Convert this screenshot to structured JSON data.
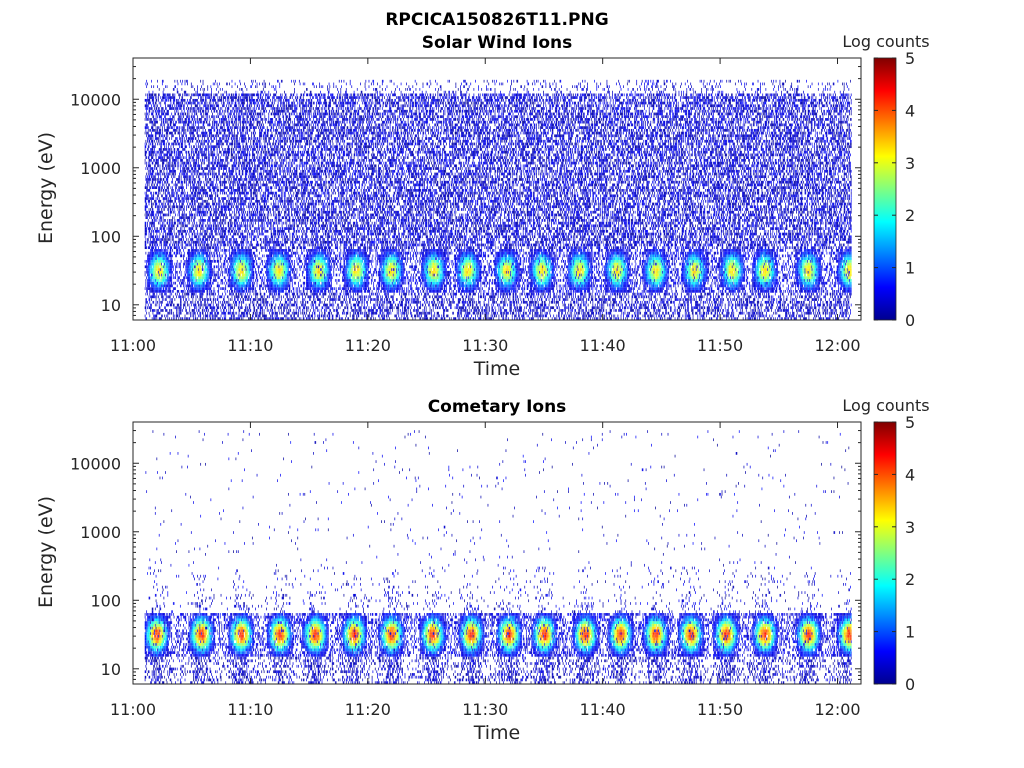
{
  "figure": {
    "title": "RPCICA150826T11.PNG"
  },
  "colorscale": {
    "stops": [
      "#00008f",
      "#0000ff",
      "#0080ff",
      "#00ffff",
      "#80ff80",
      "#ffff00",
      "#ff8000",
      "#ff0000",
      "#800000"
    ]
  },
  "chart_data": [
    {
      "type": "heatmap",
      "title": "Solar Wind Ions",
      "xlabel": "Time",
      "ylabel": "Energy (eV)",
      "y_scale": "log",
      "ylim": [
        6,
        40000
      ],
      "xlim": [
        "11:00",
        "12:02"
      ],
      "x_ticks": [
        "11:00",
        "11:10",
        "11:20",
        "11:30",
        "11:40",
        "11:50",
        "12:00"
      ],
      "y_ticks": [
        "10",
        "100",
        "1000",
        "10000"
      ],
      "colorbar": {
        "label": "Log counts",
        "range": [
          0,
          5
        ],
        "ticks": [
          "0",
          "1",
          "2",
          "3",
          "4",
          "5"
        ]
      },
      "seed": 12345,
      "background_density": 0.55,
      "background_max_energy": 20000,
      "band_energy_range": [
        22,
        45
      ],
      "peak_log_counts": 3.3,
      "bursts_minutes": [
        2.2,
        5.6,
        9.2,
        12.4,
        15.8,
        19.0,
        22.0,
        25.6,
        28.5,
        31.8,
        34.8,
        38.0,
        41.2,
        44.5,
        47.8,
        51.0,
        53.8,
        57.5,
        61.0
      ],
      "low_energy_stripes": true
    },
    {
      "type": "heatmap",
      "title": "Cometary Ions",
      "xlabel": "Time",
      "ylabel": "Energy (eV)",
      "y_scale": "log",
      "ylim": [
        6,
        40000
      ],
      "xlim": [
        "11:00",
        "12:02"
      ],
      "x_ticks": [
        "11:00",
        "11:10",
        "11:20",
        "11:30",
        "11:40",
        "11:50",
        "12:00"
      ],
      "y_ticks": [
        "10",
        "100",
        "1000",
        "10000"
      ],
      "colorbar": {
        "label": "Log counts",
        "range": [
          0,
          5
        ],
        "ticks": [
          "0",
          "1",
          "2",
          "3",
          "4",
          "5"
        ]
      },
      "seed": 777,
      "background_density": 0.012,
      "background_max_energy": 30000,
      "band_energy_range": [
        22,
        45
      ],
      "peak_log_counts": 4.2,
      "bursts_minutes": [
        2.0,
        5.8,
        9.2,
        12.5,
        15.5,
        18.8,
        22.0,
        25.5,
        28.8,
        32.0,
        35.0,
        38.5,
        41.5,
        44.5,
        47.5,
        50.5,
        53.8,
        57.5,
        61.0
      ],
      "low_energy_stripes": true
    }
  ]
}
